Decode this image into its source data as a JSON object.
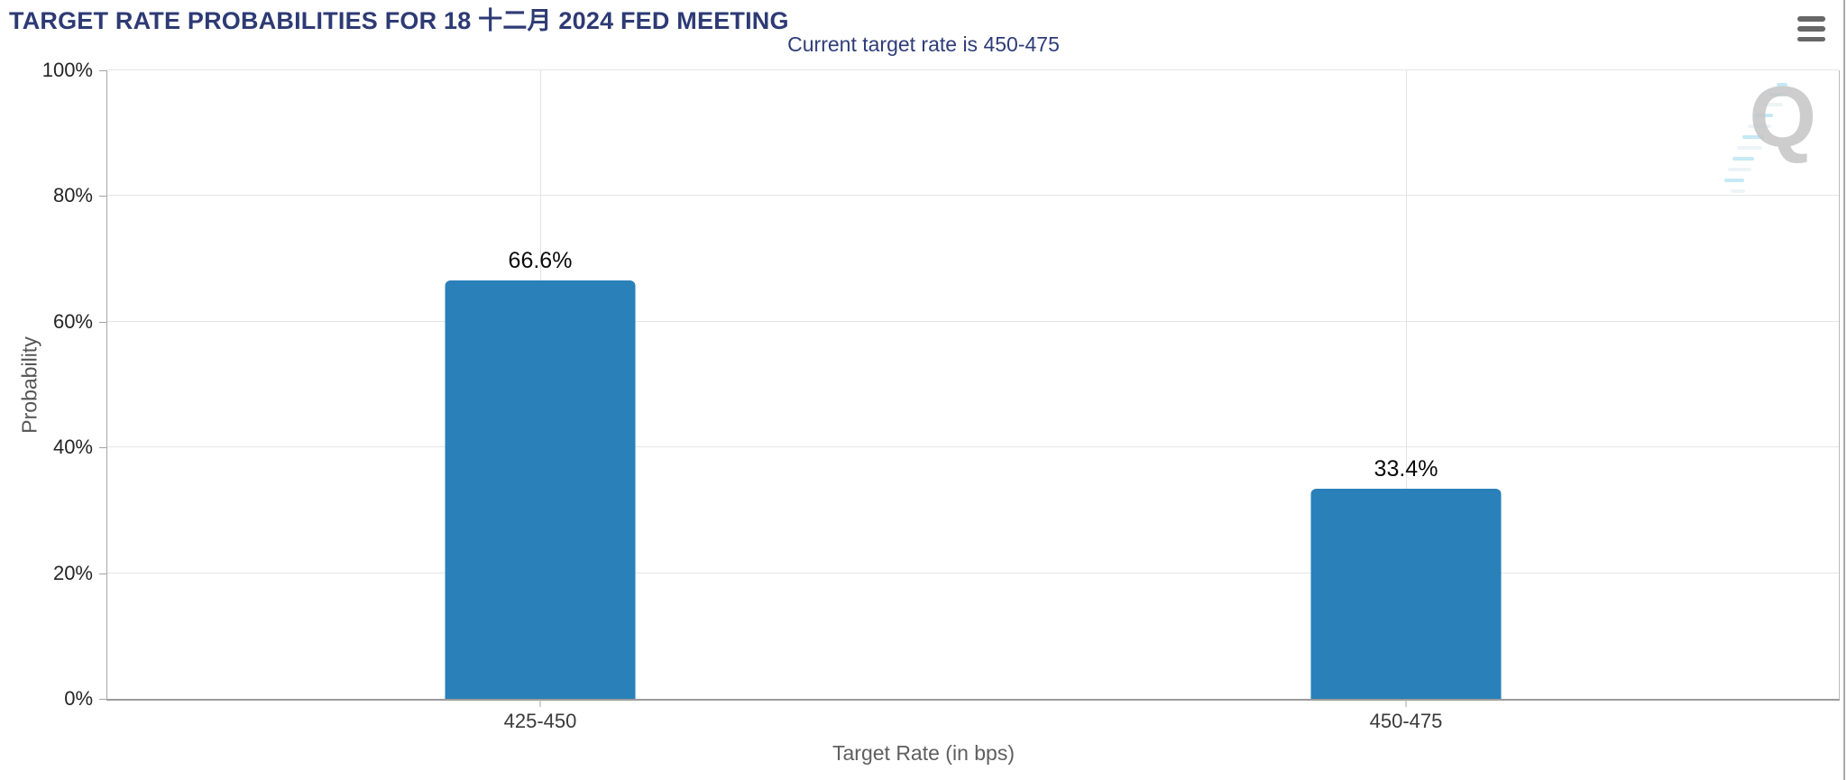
{
  "chart_data": {
    "type": "bar",
    "title": "TARGET RATE PROBABILITIES FOR 18 十二月 2024 FED MEETING",
    "subtitle": "Current target rate is 450-475",
    "categories": [
      "425-450",
      "450-475"
    ],
    "values": [
      66.6,
      33.4
    ],
    "value_labels": [
      "66.6%",
      "33.4%"
    ],
    "xlabel": "Target Rate (in bps)",
    "ylabel": "Probability",
    "ylim": [
      0,
      100
    ],
    "yticks": [
      0,
      20,
      40,
      60,
      80,
      100
    ],
    "ytick_labels": [
      "0%",
      "20%",
      "40%",
      "60%",
      "80%",
      "100%"
    ],
    "grid": true,
    "legend_position": "none",
    "bar_color": "#2a80b9"
  },
  "icons": {
    "menu": "hamburger-icon",
    "watermark_letter": "Q"
  },
  "colors": {
    "title_navy": "#2d3a74",
    "subtitle_navy": "#2e3d78",
    "bar_blue": "#2a80b9",
    "gridline_gray": "#e6e6e6",
    "axis_line_gray": "#a3a3a3",
    "tick_label_dark": "#252525",
    "axis_title_gray": "#5f5f5f",
    "hamburger_gray": "#676767",
    "watermark_gray": "#c5c5c5",
    "watermark_blue": "#a8ddf0"
  }
}
